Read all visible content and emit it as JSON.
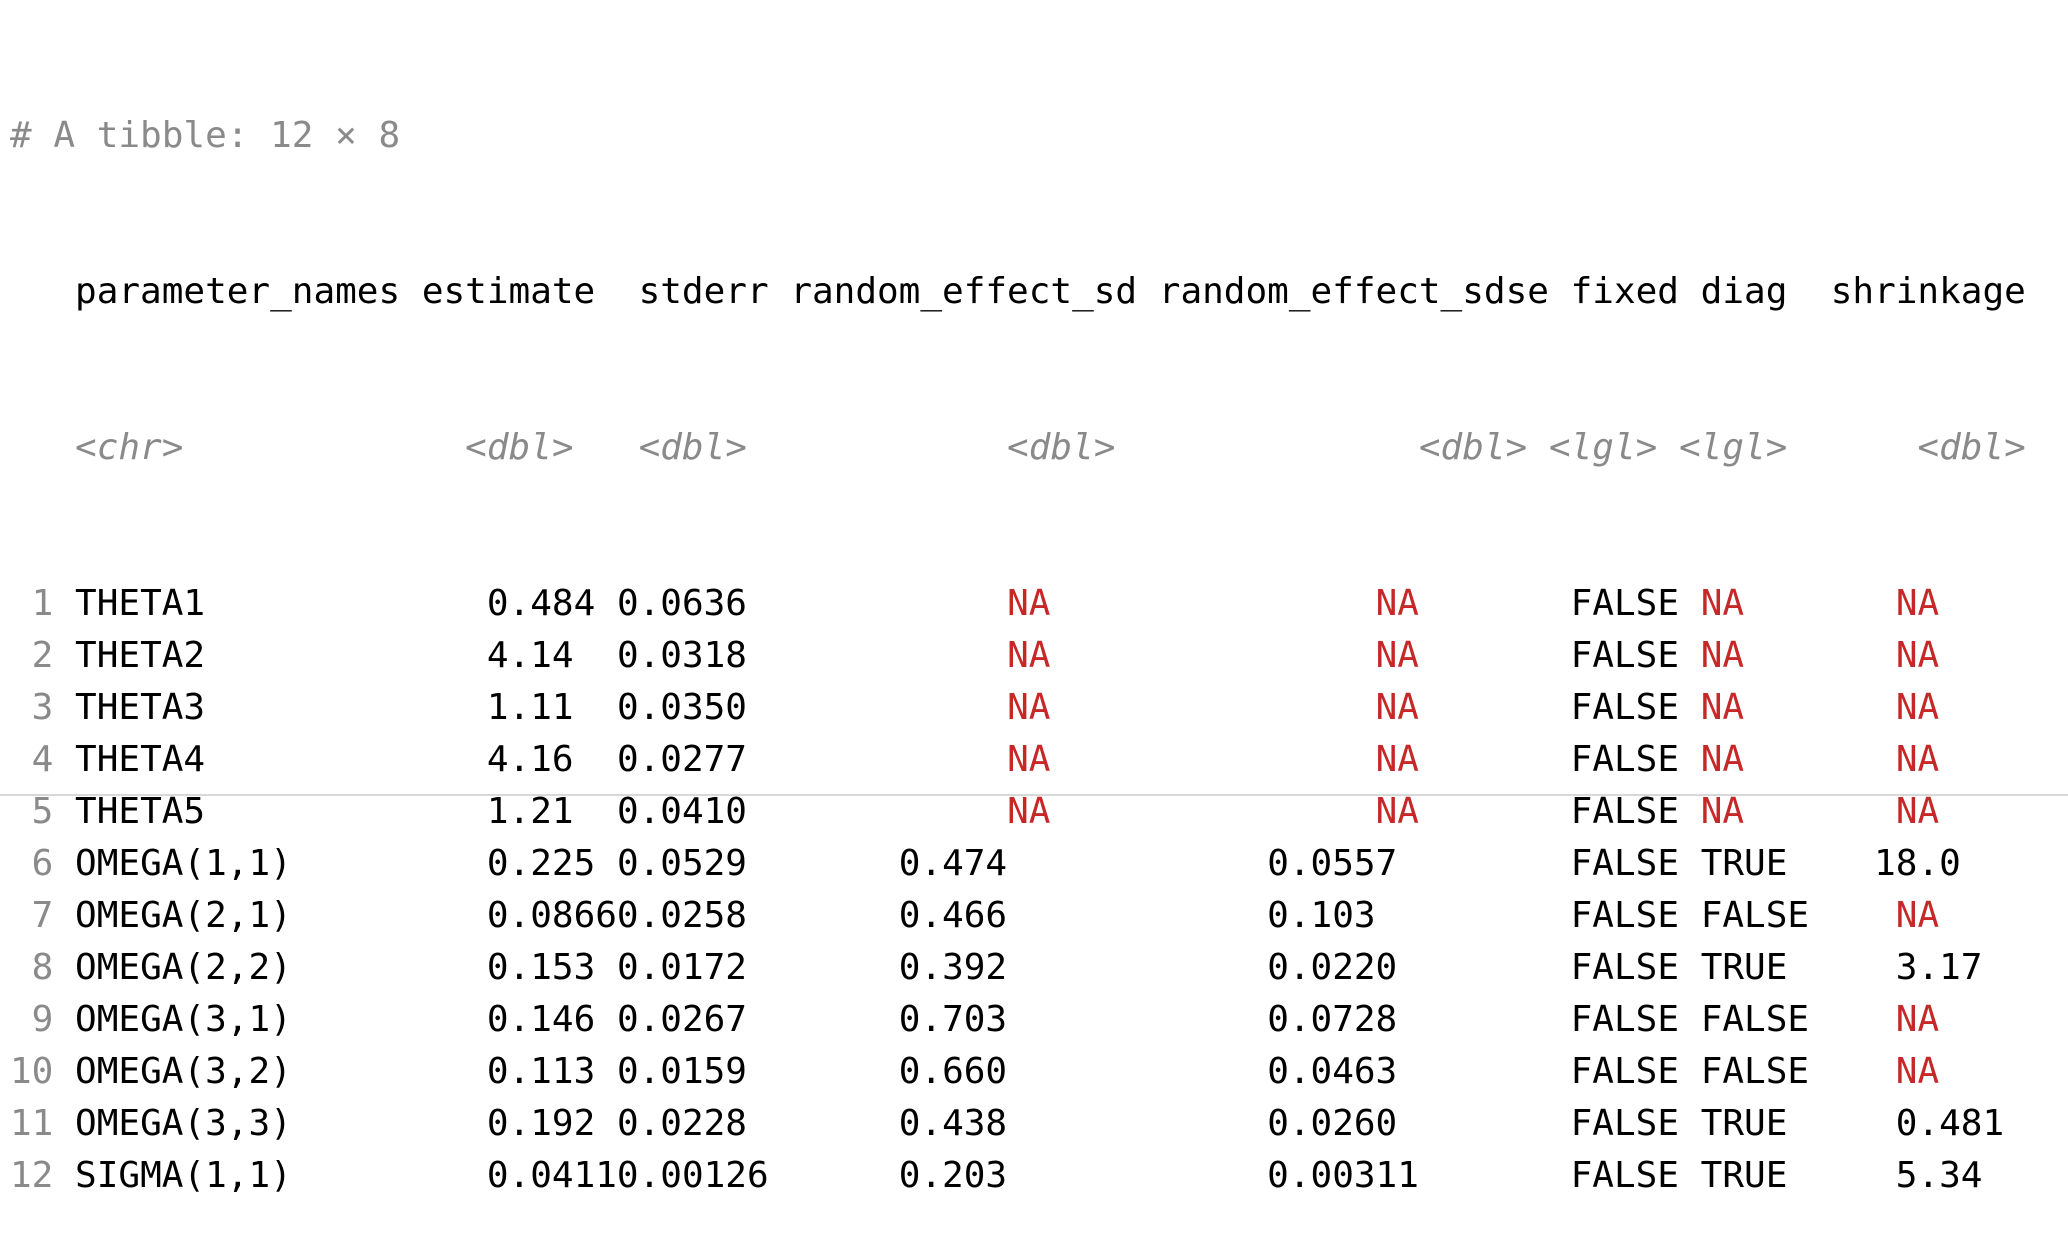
{
  "header": "# A tibble: 12 × 8",
  "columns": [
    {
      "name": "parameter_names",
      "type": "<chr>"
    },
    {
      "name": "estimate",
      "type": "<dbl>"
    },
    {
      "name": "stderr",
      "type": "<dbl>"
    },
    {
      "name": "random_effect_sd",
      "type": "<dbl>"
    },
    {
      "name": "random_effect_sdse",
      "type": "<dbl>"
    },
    {
      "name": "fixed",
      "type": "<lgl>"
    },
    {
      "name": "diag",
      "type": "<lgl>"
    },
    {
      "name": "shrinkage",
      "type": "<dbl>"
    }
  ],
  "rows": [
    {
      "n": "1",
      "cells": [
        "THETA1",
        "0.484",
        "0.0636",
        "NA",
        "NA",
        "FALSE",
        "NA",
        "NA"
      ]
    },
    {
      "n": "2",
      "cells": [
        "THETA2",
        "4.14",
        "0.0318",
        "NA",
        "NA",
        "FALSE",
        "NA",
        "NA"
      ]
    },
    {
      "n": "3",
      "cells": [
        "THETA3",
        "1.11",
        "0.0350",
        "NA",
        "NA",
        "FALSE",
        "NA",
        "NA"
      ]
    },
    {
      "n": "4",
      "cells": [
        "THETA4",
        "4.16",
        "0.0277",
        "NA",
        "NA",
        "FALSE",
        "NA",
        "NA"
      ]
    },
    {
      "n": "5",
      "cells": [
        "THETA5",
        "1.21",
        "0.0410",
        "NA",
        "NA",
        "FALSE",
        "NA",
        "NA"
      ]
    },
    {
      "n": "6",
      "cells": [
        "OMEGA(1,1)",
        "0.225",
        "0.0529",
        "0.474",
        "0.0557",
        "FALSE",
        "TRUE",
        "18.0"
      ]
    },
    {
      "n": "7",
      "cells": [
        "OMEGA(2,1)",
        "0.0866",
        "0.0258",
        "0.466",
        "0.103",
        "FALSE",
        "FALSE",
        "NA"
      ]
    },
    {
      "n": "8",
      "cells": [
        "OMEGA(2,2)",
        "0.153",
        "0.0172",
        "0.392",
        "0.0220",
        "FALSE",
        "TRUE",
        "3.17"
      ]
    },
    {
      "n": "9",
      "cells": [
        "OMEGA(3,1)",
        "0.146",
        "0.0267",
        "0.703",
        "0.0728",
        "FALSE",
        "FALSE",
        "NA"
      ]
    },
    {
      "n": "10",
      "cells": [
        "OMEGA(3,2)",
        "0.113",
        "0.0159",
        "0.660",
        "0.0463",
        "FALSE",
        "FALSE",
        "NA"
      ]
    },
    {
      "n": "11",
      "cells": [
        "OMEGA(3,3)",
        "0.192",
        "0.0228",
        "0.438",
        "0.0260",
        "FALSE",
        "TRUE",
        "0.481"
      ]
    },
    {
      "n": "12",
      "cells": [
        "SIGMA(1,1)",
        "0.0411",
        "0.00126",
        "0.203",
        "0.00311",
        "FALSE",
        "TRUE",
        "5.34"
      ]
    }
  ],
  "colors": {
    "muted": "#8a8a8a",
    "na": "#c62828",
    "text": "#000000"
  }
}
